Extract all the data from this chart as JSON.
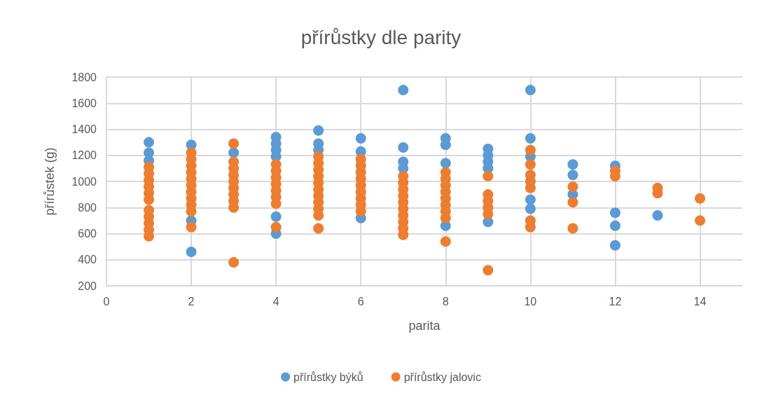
{
  "chart_data": {
    "type": "scatter",
    "title": "přírůstky dle parity",
    "xlabel": "parita",
    "ylabel": "přírůstek (g)",
    "xlim": [
      0,
      15
    ],
    "xticks": [
      0,
      2,
      4,
      6,
      8,
      10,
      12,
      14
    ],
    "ylim": [
      200,
      1800
    ],
    "yticks": [
      200,
      400,
      600,
      800,
      1000,
      1200,
      1400,
      1600,
      1800
    ],
    "grid": true,
    "legend": "bottom",
    "marker": "circle",
    "series": [
      {
        "name": "přírůstky býků",
        "color": "#5b9bd5",
        "x": [
          1,
          1,
          1,
          2,
          2,
          2,
          3,
          4,
          4,
          4,
          4,
          4,
          4,
          5,
          5,
          5,
          6,
          6,
          6,
          7,
          7,
          7,
          7,
          8,
          8,
          8,
          8,
          9,
          9,
          9,
          9,
          9,
          10,
          10,
          10,
          10,
          10,
          11,
          11,
          11,
          12,
          12,
          12,
          12,
          13
        ],
        "values": [
          1300,
          1220,
          1160,
          1280,
          700,
          460,
          1220,
          1340,
          1290,
          1240,
          1190,
          730,
          600,
          1390,
          1290,
          1240,
          1330,
          1230,
          720,
          1700,
          1260,
          1150,
          1100,
          1330,
          1280,
          1140,
          660,
          1250,
          1200,
          1150,
          1100,
          690,
          1700,
          1330,
          1190,
          860,
          790,
          1130,
          1050,
          900,
          1120,
          760,
          660,
          510,
          740
        ]
      },
      {
        "name": "přírůstky jalovic",
        "color": "#ed7d31",
        "x": [
          1,
          1,
          1,
          1,
          1,
          1,
          1,
          1,
          1,
          1,
          1,
          2,
          2,
          2,
          2,
          2,
          2,
          2,
          2,
          2,
          2,
          2,
          3,
          3,
          3,
          3,
          3,
          3,
          3,
          3,
          3,
          3,
          4,
          4,
          4,
          4,
          4,
          4,
          4,
          4,
          5,
          5,
          5,
          5,
          5,
          5,
          5,
          5,
          5,
          5,
          5,
          6,
          6,
          6,
          6,
          6,
          6,
          6,
          6,
          6,
          7,
          7,
          7,
          7,
          7,
          7,
          7,
          7,
          7,
          7,
          8,
          8,
          8,
          8,
          8,
          8,
          8,
          8,
          8,
          9,
          9,
          9,
          9,
          9,
          9,
          10,
          10,
          10,
          10,
          10,
          10,
          10,
          11,
          11,
          11,
          12,
          12,
          13,
          13,
          14,
          14
        ],
        "values": [
          1110,
          1060,
          1010,
          960,
          910,
          860,
          780,
          730,
          680,
          630,
          580,
          1220,
          1170,
          1120,
          1070,
          1020,
          970,
          920,
          870,
          820,
          770,
          650,
          1290,
          1150,
          1100,
          1050,
          1000,
          950,
          900,
          850,
          800,
          380,
          1130,
          1080,
          1030,
          980,
          930,
          880,
          830,
          650,
          1190,
          1140,
          1090,
          1040,
          990,
          940,
          890,
          840,
          790,
          740,
          640,
          1170,
          1120,
          1070,
          1020,
          970,
          920,
          870,
          820,
          770,
          1040,
          990,
          940,
          890,
          840,
          790,
          740,
          690,
          640,
          590,
          1070,
          1020,
          970,
          920,
          870,
          820,
          770,
          720,
          540,
          1040,
          900,
          850,
          800,
          750,
          320,
          1240,
          1130,
          1050,
          1000,
          950,
          700,
          650,
          960,
          840,
          640,
          1080,
          1040,
          950,
          910,
          870,
          700
        ]
      }
    ]
  }
}
